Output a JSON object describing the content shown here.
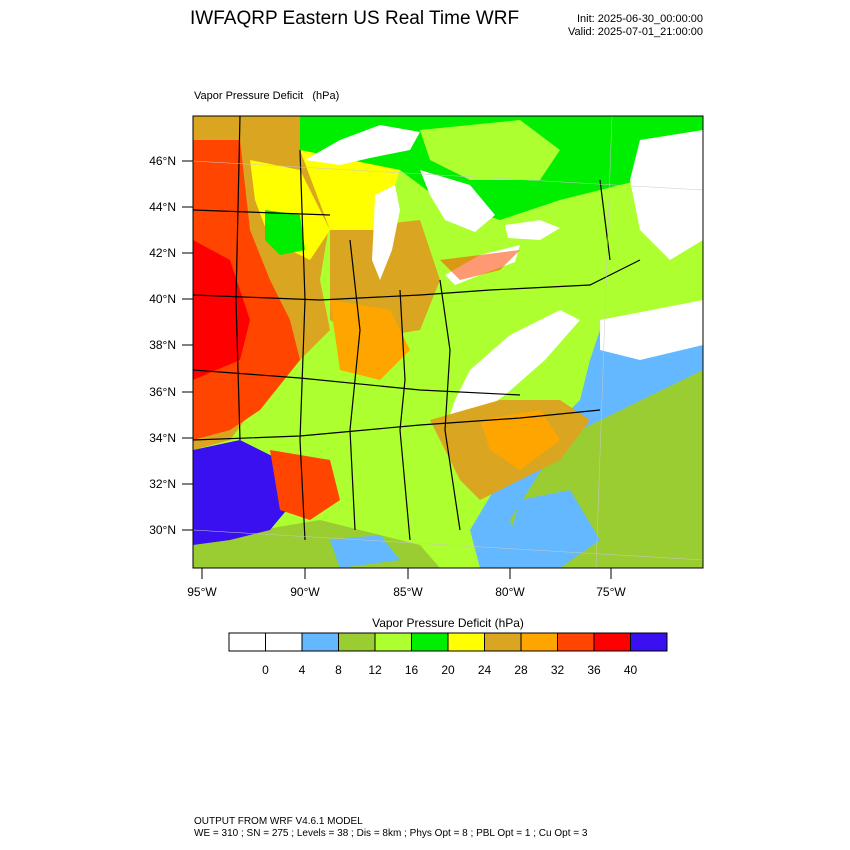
{
  "header": {
    "title": "IWFAQRP Eastern US Real Time WRF",
    "init": "Init: 2025-06-30_00:00:00",
    "valid": "Valid: 2025-07-01_21:00:00"
  },
  "map": {
    "field_label": "Vapor Pressure Deficit   (hPa)",
    "lat_labels": [
      "46°N",
      "44°N",
      "42°N",
      "40°N",
      "38°N",
      "36°N",
      "34°N",
      "32°N",
      "30°N"
    ],
    "lon_labels": [
      "95°W",
      "90°W",
      "85°W",
      "80°W",
      "75°W"
    ]
  },
  "colorbar": {
    "title": "Vapor Pressure Deficit  (hPa)",
    "colors": [
      "#ffffff",
      "#ffffff",
      "#63b8ff",
      "#9acd32",
      "#adff2f",
      "#00ee00",
      "#ffff00",
      "#daa520",
      "#ffa500",
      "#ff4500",
      "#ff0000",
      "#3a10f0"
    ],
    "tick_labels": [
      "0",
      "4",
      "8",
      "12",
      "16",
      "20",
      "24",
      "28",
      "32",
      "36",
      "40"
    ]
  },
  "footer": {
    "line1": "OUTPUT FROM WRF V4.6.1 MODEL",
    "line2": "WE = 310 ; SN = 275 ; Levels = 38 ; Dis = 8km ; Phys Opt = 8 ; PBL Opt = 1 ; Cu Opt = 3"
  }
}
